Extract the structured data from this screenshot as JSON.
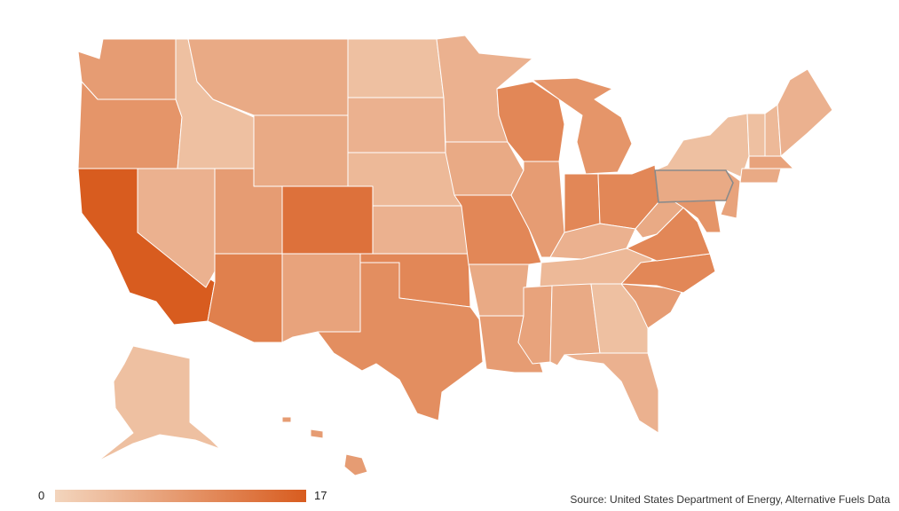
{
  "map": {
    "color_scale": {
      "min": 0,
      "max": 17,
      "min_color": "#f3d5bd",
      "max_color": "#d85c1f"
    },
    "states": [
      {
        "name": "Washington",
        "value": 8
      },
      {
        "name": "Oregon",
        "value": 9
      },
      {
        "name": "California",
        "value": 17
      },
      {
        "name": "Nevada",
        "value": 5
      },
      {
        "name": "Idaho",
        "value": 3
      },
      {
        "name": "Montana",
        "value": 6
      },
      {
        "name": "Wyoming",
        "value": 6
      },
      {
        "name": "Utah",
        "value": 8
      },
      {
        "name": "Colorado",
        "value": 14
      },
      {
        "name": "Arizona",
        "value": 12
      },
      {
        "name": "New Mexico",
        "value": 7
      },
      {
        "name": "North Dakota",
        "value": 3
      },
      {
        "name": "South Dakota",
        "value": 5
      },
      {
        "name": "Nebraska",
        "value": 4
      },
      {
        "name": "Kansas",
        "value": 5
      },
      {
        "name": "Oklahoma",
        "value": 11
      },
      {
        "name": "Texas",
        "value": 10
      },
      {
        "name": "Minnesota",
        "value": 5
      },
      {
        "name": "Iowa",
        "value": 6
      },
      {
        "name": "Missouri",
        "value": 11
      },
      {
        "name": "Arkansas",
        "value": 6
      },
      {
        "name": "Louisiana",
        "value": 8
      },
      {
        "name": "Wisconsin",
        "value": 11
      },
      {
        "name": "Illinois",
        "value": 8
      },
      {
        "name": "Michigan",
        "value": 9
      },
      {
        "name": "Indiana",
        "value": 11
      },
      {
        "name": "Ohio",
        "value": 11
      },
      {
        "name": "Kentucky",
        "value": 5
      },
      {
        "name": "Tennessee",
        "value": 4
      },
      {
        "name": "Mississippi",
        "value": 7
      },
      {
        "name": "Alabama",
        "value": 6
      },
      {
        "name": "Georgia",
        "value": 3
      },
      {
        "name": "Florida",
        "value": 5
      },
      {
        "name": "South Carolina",
        "value": 8
      },
      {
        "name": "North Carolina",
        "value": 11
      },
      {
        "name": "Virginia",
        "value": 11
      },
      {
        "name": "West Virginia",
        "value": 6
      },
      {
        "name": "Pennsylvania",
        "value": 6
      },
      {
        "name": "New York",
        "value": 3
      },
      {
        "name": "Maine",
        "value": 5
      },
      {
        "name": "Vermont",
        "value": 3
      },
      {
        "name": "New Hampshire",
        "value": 4
      },
      {
        "name": "Massachusetts",
        "value": 7
      },
      {
        "name": "Connecticut",
        "value": 6
      },
      {
        "name": "New Jersey",
        "value": 7
      },
      {
        "name": "Maryland",
        "value": 9
      },
      {
        "name": "Alaska",
        "value": 3
      },
      {
        "name": "Hawaii",
        "value": 8
      }
    ]
  },
  "legend": {
    "min_label": "0",
    "max_label": "17"
  },
  "source": "Source: United States Department of Energy, Alternative Fuels Data"
}
